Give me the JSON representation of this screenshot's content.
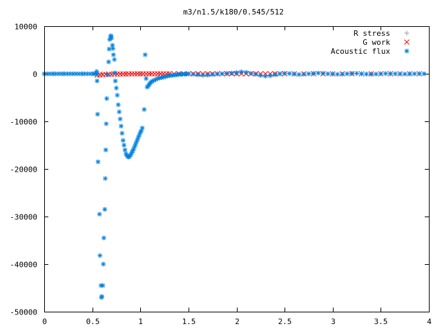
{
  "chart_data": {
    "type": "scatter",
    "title": "m3/n1.5/k180/0.545/512",
    "xlabel": "",
    "ylabel": "",
    "xlim": [
      0,
      4
    ],
    "ylim": [
      -50000,
      10000
    ],
    "grid": false,
    "legend_position": "top-right",
    "x_ticks": [
      0,
      0.5,
      1,
      1.5,
      2,
      2.5,
      3,
      3.5,
      4
    ],
    "x_tick_labels": [
      "0",
      "0.5",
      "1",
      "1.5",
      "2",
      "2.5",
      "3",
      "3.5",
      "4"
    ],
    "y_ticks": [
      10000,
      0,
      -10000,
      -20000,
      -30000,
      -40000,
      -50000
    ],
    "y_tick_labels": [
      "10000",
      "0",
      "-10000",
      "-20000",
      "-30000",
      "-40000",
      "-50000"
    ],
    "series": [
      {
        "name": "R stress",
        "color": "#999999",
        "marker": "plus",
        "points": [
          [
            0.0,
            0
          ],
          [
            0.1,
            0
          ],
          [
            0.2,
            0
          ],
          [
            0.3,
            0
          ],
          [
            0.4,
            0
          ],
          [
            0.5,
            0
          ],
          [
            0.55,
            10
          ],
          [
            0.6,
            30
          ],
          [
            0.65,
            40
          ],
          [
            0.7,
            50
          ],
          [
            0.75,
            60
          ],
          [
            0.8,
            50
          ],
          [
            0.85,
            40
          ],
          [
            0.9,
            30
          ],
          [
            0.95,
            20
          ],
          [
            1.0,
            10
          ],
          [
            1.1,
            0
          ],
          [
            1.2,
            0
          ],
          [
            1.3,
            0
          ],
          [
            1.4,
            0
          ],
          [
            1.5,
            0
          ],
          [
            1.6,
            0
          ],
          [
            1.7,
            0
          ],
          [
            1.8,
            0
          ],
          [
            1.9,
            0
          ],
          [
            2.0,
            0
          ],
          [
            2.2,
            0
          ],
          [
            2.4,
            0
          ],
          [
            2.6,
            0
          ],
          [
            2.8,
            0
          ],
          [
            3.0,
            0
          ],
          [
            3.2,
            0
          ],
          [
            3.4,
            0
          ],
          [
            3.6,
            0
          ],
          [
            3.8,
            0
          ],
          [
            3.95,
            0
          ]
        ]
      },
      {
        "name": "G work",
        "color": "#ff0000",
        "marker": "cross",
        "points": [
          [
            0.55,
            -300
          ],
          [
            0.58,
            -250
          ],
          [
            0.61,
            -200
          ],
          [
            0.64,
            -150
          ],
          [
            0.67,
            -120
          ],
          [
            0.7,
            -100
          ],
          [
            0.73,
            -80
          ],
          [
            0.76,
            -70
          ],
          [
            0.79,
            -60
          ],
          [
            0.82,
            -50
          ],
          [
            0.85,
            -40
          ],
          [
            0.88,
            -30
          ],
          [
            0.91,
            -20
          ],
          [
            0.94,
            -10
          ],
          [
            0.97,
            0
          ],
          [
            1.0,
            0
          ],
          [
            1.03,
            0
          ],
          [
            1.06,
            0
          ],
          [
            1.09,
            0
          ],
          [
            1.12,
            0
          ],
          [
            1.15,
            0
          ],
          [
            1.18,
            0
          ],
          [
            1.21,
            0
          ],
          [
            1.24,
            0
          ],
          [
            1.27,
            0
          ],
          [
            1.3,
            0
          ],
          [
            1.35,
            0
          ],
          [
            1.4,
            0
          ],
          [
            1.45,
            0
          ],
          [
            1.5,
            0
          ],
          [
            1.55,
            0
          ],
          [
            1.6,
            0
          ],
          [
            1.65,
            0
          ],
          [
            1.7,
            0
          ],
          [
            1.75,
            0
          ],
          [
            1.8,
            0
          ],
          [
            1.85,
            0
          ],
          [
            1.9,
            0
          ],
          [
            1.95,
            0
          ],
          [
            2.0,
            0
          ],
          [
            2.05,
            0
          ],
          [
            2.1,
            0
          ],
          [
            2.15,
            0
          ],
          [
            2.2,
            0
          ],
          [
            2.25,
            0
          ],
          [
            2.3,
            0
          ],
          [
            2.35,
            0
          ],
          [
            2.4,
            0
          ],
          [
            2.45,
            0
          ],
          [
            2.5,
            0
          ],
          [
            2.6,
            0
          ],
          [
            2.7,
            0
          ],
          [
            2.8,
            0
          ],
          [
            2.9,
            0
          ],
          [
            3.0,
            0
          ],
          [
            3.1,
            0
          ],
          [
            3.2,
            0
          ],
          [
            3.3,
            0
          ],
          [
            3.4,
            0
          ],
          [
            3.5,
            0
          ],
          [
            3.6,
            0
          ],
          [
            3.7,
            0
          ],
          [
            3.8,
            0
          ],
          [
            3.9,
            0
          ]
        ]
      },
      {
        "name": "Acoustic flux",
        "color": "#0080e0",
        "marker": "star",
        "points": [
          [
            0.0,
            0
          ],
          [
            0.03,
            0
          ],
          [
            0.06,
            0
          ],
          [
            0.09,
            0
          ],
          [
            0.12,
            0
          ],
          [
            0.15,
            0
          ],
          [
            0.18,
            0
          ],
          [
            0.21,
            0
          ],
          [
            0.24,
            0
          ],
          [
            0.27,
            0
          ],
          [
            0.3,
            0
          ],
          [
            0.33,
            0
          ],
          [
            0.36,
            0
          ],
          [
            0.39,
            0
          ],
          [
            0.42,
            0
          ],
          [
            0.45,
            0
          ],
          [
            0.48,
            0
          ],
          [
            0.51,
            0
          ],
          [
            0.53,
            0
          ],
          [
            0.55,
            0
          ],
          [
            0.545,
            500
          ],
          [
            0.55,
            -1500
          ],
          [
            0.555,
            -8500
          ],
          [
            0.56,
            -18500
          ],
          [
            0.575,
            -29500
          ],
          [
            0.58,
            -38200
          ],
          [
            0.59,
            -44500
          ],
          [
            0.595,
            -47000
          ],
          [
            0.6,
            -46800
          ],
          [
            0.61,
            -44500
          ],
          [
            0.615,
            -40000
          ],
          [
            0.62,
            -34500
          ],
          [
            0.63,
            -28500
          ],
          [
            0.635,
            -22000
          ],
          [
            0.64,
            -16000
          ],
          [
            0.645,
            -10500
          ],
          [
            0.65,
            -5200
          ],
          [
            0.66,
            -200
          ],
          [
            0.67,
            2500
          ],
          [
            0.675,
            5200
          ],
          [
            0.68,
            7200
          ],
          [
            0.69,
            7800
          ],
          [
            0.695,
            8000
          ],
          [
            0.7,
            7500
          ],
          [
            0.71,
            6000
          ],
          [
            0.715,
            5300
          ],
          [
            0.72,
            4000
          ],
          [
            0.73,
            3000
          ],
          [
            0.735,
            200
          ],
          [
            0.74,
            -1500
          ],
          [
            0.75,
            -3000
          ],
          [
            0.76,
            -4500
          ],
          [
            0.77,
            -6500
          ],
          [
            0.78,
            -8000
          ],
          [
            0.79,
            -9500
          ],
          [
            0.8,
            -11000
          ],
          [
            0.81,
            -12500
          ],
          [
            0.82,
            -14000
          ],
          [
            0.83,
            -15000
          ],
          [
            0.84,
            -16000
          ],
          [
            0.85,
            -16800
          ],
          [
            0.86,
            -17200
          ],
          [
            0.87,
            -17400
          ],
          [
            0.88,
            -17500
          ],
          [
            0.89,
            -17300
          ],
          [
            0.9,
            -17000
          ],
          [
            0.91,
            -16600
          ],
          [
            0.92,
            -16200
          ],
          [
            0.93,
            -15800
          ],
          [
            0.94,
            -15300
          ],
          [
            0.95,
            -14800
          ],
          [
            0.96,
            -14300
          ],
          [
            0.97,
            -13800
          ],
          [
            0.98,
            -13300
          ],
          [
            0.99,
            -12800
          ],
          [
            1.0,
            -12300
          ],
          [
            1.01,
            -12000
          ],
          [
            1.02,
            -11400
          ],
          [
            1.04,
            -7500
          ],
          [
            1.05,
            4000
          ],
          [
            1.06,
            -1000
          ],
          [
            1.07,
            -2800
          ],
          [
            1.08,
            -2600
          ],
          [
            1.09,
            -2300
          ],
          [
            1.1,
            -2000
          ],
          [
            1.11,
            -1800
          ],
          [
            1.12,
            -1600
          ],
          [
            1.14,
            -1400
          ],
          [
            1.16,
            -1200
          ],
          [
            1.18,
            -1000
          ],
          [
            1.2,
            -900
          ],
          [
            1.22,
            -800
          ],
          [
            1.24,
            -700
          ],
          [
            1.26,
            -600
          ],
          [
            1.28,
            -500
          ],
          [
            1.3,
            -400
          ],
          [
            1.32,
            -350
          ],
          [
            1.34,
            -300
          ],
          [
            1.36,
            -250
          ],
          [
            1.38,
            -200
          ],
          [
            1.4,
            -150
          ],
          [
            1.42,
            -100
          ],
          [
            1.44,
            -80
          ],
          [
            1.46,
            -60
          ],
          [
            1.48,
            -40
          ],
          [
            1.5,
            -20
          ],
          [
            1.55,
            -100
          ],
          [
            1.6,
            -200
          ],
          [
            1.65,
            -300
          ],
          [
            1.7,
            -250
          ],
          [
            1.75,
            -150
          ],
          [
            1.8,
            -50
          ],
          [
            1.85,
            0
          ],
          [
            1.9,
            100
          ],
          [
            1.95,
            150
          ],
          [
            2.0,
            250
          ],
          [
            2.05,
            400
          ],
          [
            2.1,
            300
          ],
          [
            2.15,
            100
          ],
          [
            2.2,
            -100
          ],
          [
            2.25,
            -350
          ],
          [
            2.3,
            -500
          ],
          [
            2.35,
            -400
          ],
          [
            2.4,
            -200
          ],
          [
            2.45,
            0
          ],
          [
            2.5,
            100
          ],
          [
            2.55,
            50
          ],
          [
            2.6,
            -50
          ],
          [
            2.65,
            -150
          ],
          [
            2.7,
            -100
          ],
          [
            2.75,
            0
          ],
          [
            2.8,
            80
          ],
          [
            2.85,
            150
          ],
          [
            2.9,
            100
          ],
          [
            2.95,
            0
          ],
          [
            3.0,
            -50
          ],
          [
            3.05,
            -100
          ],
          [
            3.1,
            -80
          ],
          [
            3.15,
            0
          ],
          [
            3.2,
            100
          ],
          [
            3.25,
            80
          ],
          [
            3.3,
            0
          ],
          [
            3.35,
            -50
          ],
          [
            3.4,
            -100
          ],
          [
            3.45,
            -50
          ],
          [
            3.5,
            0
          ],
          [
            3.55,
            50
          ],
          [
            3.6,
            30
          ],
          [
            3.65,
            0
          ],
          [
            3.7,
            -30
          ],
          [
            3.75,
            -50
          ],
          [
            3.8,
            -20
          ],
          [
            3.85,
            0
          ],
          [
            3.9,
            20
          ],
          [
            3.95,
            0
          ]
        ]
      }
    ]
  }
}
